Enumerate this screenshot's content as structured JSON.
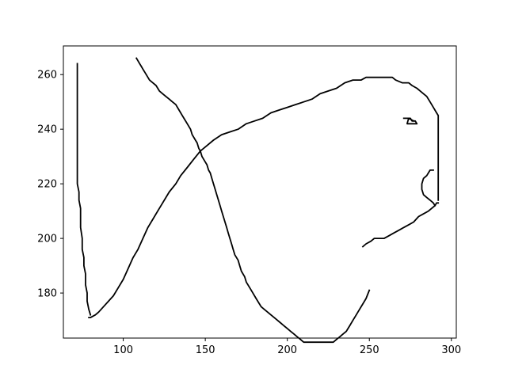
{
  "chart_data": {
    "type": "line",
    "title": "",
    "xlabel": "",
    "ylabel": "",
    "xlim": [
      63.5,
      303
    ],
    "ylim": [
      163.5,
      270.5
    ],
    "xticks": [
      100,
      150,
      200,
      250,
      300
    ],
    "yticks": [
      180,
      200,
      220,
      240,
      260
    ],
    "xtick_labels": [
      "100",
      "150",
      "200",
      "250",
      "300"
    ],
    "ytick_labels": [
      "180",
      "200",
      "220",
      "240",
      "260"
    ],
    "grid": false,
    "line_color": "#000000",
    "series": [
      {
        "values": [
          [
            108,
            266
          ],
          [
            110,
            264
          ],
          [
            111,
            263
          ],
          [
            112,
            262
          ],
          [
            114,
            260
          ],
          [
            116,
            258
          ],
          [
            118,
            257
          ],
          [
            120,
            256
          ],
          [
            122,
            254
          ],
          [
            124,
            253
          ],
          [
            126,
            252
          ],
          [
            128,
            251
          ],
          [
            130,
            250
          ],
          [
            132,
            249
          ],
          [
            134,
            247
          ],
          [
            136,
            245
          ],
          [
            137,
            244
          ],
          [
            139,
            242
          ],
          [
            140,
            241
          ],
          [
            141,
            240
          ],
          [
            142,
            238
          ],
          [
            144,
            236
          ],
          [
            145,
            235
          ],
          [
            146,
            233
          ],
          [
            147,
            232
          ],
          [
            148,
            230
          ],
          [
            150,
            228
          ],
          [
            151,
            227
          ],
          [
            152,
            225
          ],
          [
            153,
            224
          ],
          [
            154,
            222
          ],
          [
            155,
            220
          ],
          [
            156,
            218
          ],
          [
            157,
            216
          ],
          [
            158,
            214
          ],
          [
            159,
            212
          ],
          [
            160,
            210
          ],
          [
            161,
            208
          ],
          [
            162,
            206
          ],
          [
            163,
            204
          ],
          [
            164,
            202
          ],
          [
            165,
            200
          ],
          [
            166,
            198
          ],
          [
            167,
            196
          ],
          [
            168,
            194
          ],
          [
            170,
            192
          ],
          [
            171,
            190
          ],
          [
            172,
            188
          ],
          [
            174,
            186
          ],
          [
            175,
            184
          ],
          [
            177,
            182
          ],
          [
            179,
            180
          ],
          [
            181,
            178
          ],
          [
            183,
            176
          ],
          [
            184,
            175
          ],
          [
            186,
            174
          ],
          [
            188,
            173
          ],
          [
            190,
            172
          ],
          [
            192,
            171
          ],
          [
            194,
            170
          ],
          [
            196,
            169
          ],
          [
            198,
            168
          ],
          [
            200,
            167
          ],
          [
            202,
            166
          ],
          [
            204,
            165
          ],
          [
            206,
            164
          ],
          [
            208,
            163
          ],
          [
            210,
            162
          ],
          [
            212,
            162
          ],
          [
            214,
            162
          ],
          [
            216,
            162
          ],
          [
            218,
            162
          ],
          [
            220,
            162
          ],
          [
            222,
            162
          ],
          [
            224,
            162
          ],
          [
            226,
            162
          ],
          [
            228,
            162
          ],
          [
            230,
            163
          ],
          [
            232,
            164
          ],
          [
            234,
            165
          ],
          [
            236,
            166
          ],
          [
            238,
            168
          ],
          [
            240,
            170
          ],
          [
            242,
            172
          ],
          [
            244,
            174
          ],
          [
            246,
            176
          ],
          [
            248,
            178
          ],
          [
            250,
            181
          ]
        ]
      },
      {
        "values": [
          [
            72,
            264
          ],
          [
            72,
            220
          ],
          [
            73,
            217
          ],
          [
            73,
            214
          ],
          [
            74,
            211
          ],
          [
            74,
            204
          ],
          [
            75,
            200
          ],
          [
            75,
            196
          ],
          [
            76,
            193
          ],
          [
            76,
            190
          ],
          [
            77,
            187
          ],
          [
            77,
            183
          ],
          [
            78,
            180
          ],
          [
            78,
            177
          ],
          [
            79,
            174
          ],
          [
            80,
            172
          ]
        ]
      },
      {
        "values": [
          [
            79,
            171
          ],
          [
            80,
            171
          ],
          [
            83,
            172
          ],
          [
            85,
            173
          ],
          [
            88,
            175
          ],
          [
            91,
            177
          ],
          [
            94,
            179
          ],
          [
            97,
            182
          ],
          [
            100,
            185
          ],
          [
            103,
            189
          ],
          [
            106,
            193
          ],
          [
            109,
            196
          ],
          [
            112,
            200
          ],
          [
            115,
            204
          ],
          [
            118,
            207
          ],
          [
            121,
            210
          ],
          [
            124,
            213
          ],
          [
            128,
            217
          ],
          [
            132,
            220
          ],
          [
            135,
            223
          ],
          [
            139,
            226
          ],
          [
            143,
            229
          ],
          [
            147,
            232
          ],
          [
            151,
            234
          ],
          [
            155,
            236
          ],
          [
            160,
            238
          ],
          [
            165,
            239
          ],
          [
            170,
            240
          ],
          [
            175,
            242
          ],
          [
            180,
            243
          ],
          [
            185,
            244
          ],
          [
            190,
            246
          ],
          [
            195,
            247
          ],
          [
            200,
            248
          ],
          [
            205,
            249
          ],
          [
            210,
            250
          ],
          [
            215,
            251
          ],
          [
            220,
            253
          ],
          [
            225,
            254
          ],
          [
            230,
            255
          ],
          [
            235,
            257
          ],
          [
            240,
            258
          ],
          [
            245,
            258
          ],
          [
            248,
            259
          ],
          [
            252,
            259
          ],
          [
            256,
            259
          ],
          [
            260,
            259
          ],
          [
            264,
            259
          ],
          [
            266,
            258
          ],
          [
            270,
            257
          ],
          [
            274,
            257
          ],
          [
            276,
            256
          ],
          [
            279,
            255
          ],
          [
            281,
            254
          ],
          [
            283,
            253
          ],
          [
            285,
            252
          ],
          [
            287,
            250
          ],
          [
            289,
            248
          ],
          [
            291,
            246
          ],
          [
            292,
            245
          ],
          [
            292,
            214
          ]
        ]
      },
      {
        "values": [
          [
            246,
            197
          ],
          [
            248,
            198
          ],
          [
            251,
            199
          ],
          [
            253,
            200
          ],
          [
            256,
            200
          ],
          [
            259,
            200
          ],
          [
            262,
            201
          ],
          [
            265,
            202
          ],
          [
            268,
            203
          ],
          [
            271,
            204
          ],
          [
            274,
            205
          ],
          [
            277,
            206
          ],
          [
            280,
            208
          ],
          [
            283,
            209
          ],
          [
            286,
            210
          ],
          [
            288,
            211
          ],
          [
            290,
            212
          ],
          [
            291,
            213
          ],
          [
            292,
            213
          ]
        ]
      },
      {
        "values": [
          [
            289,
            225
          ],
          [
            287,
            225
          ],
          [
            285,
            223
          ],
          [
            283,
            222
          ],
          [
            282,
            220
          ],
          [
            282,
            218
          ],
          [
            283,
            216
          ],
          [
            285,
            215
          ],
          [
            287,
            214
          ],
          [
            289,
            213
          ],
          [
            290,
            212
          ]
        ]
      },
      {
        "values": [
          [
            271,
            244
          ],
          [
            275,
            244
          ],
          [
            276,
            243
          ],
          [
            278,
            243
          ],
          [
            279,
            242
          ],
          [
            273,
            242
          ],
          [
            274,
            244
          ],
          [
            277,
            243
          ]
        ]
      }
    ]
  }
}
